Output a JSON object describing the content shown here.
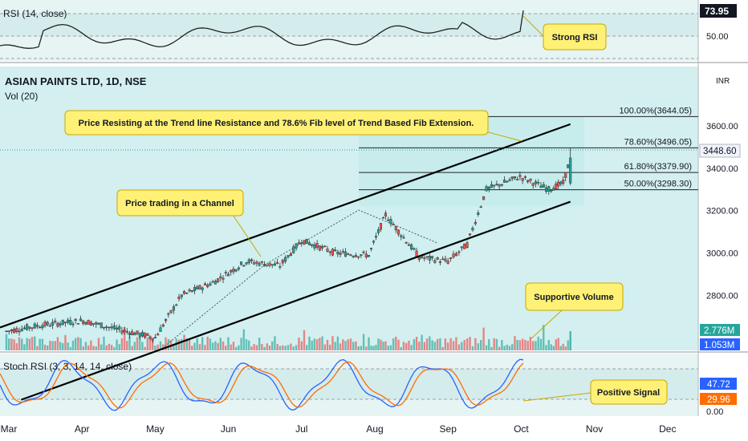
{
  "chart_data": {
    "type": "candlestick",
    "symbol_title": "ASIAN PAINTS LTD, 1D, NSE",
    "volume_label": "Vol (20)",
    "currency": "INR",
    "x_ticks": [
      "Mar",
      "Apr",
      "May",
      "Jun",
      "Jul",
      "Aug",
      "Sep",
      "Oct",
      "Nov",
      "Dec"
    ],
    "price_axis": {
      "ticks": [
        "3600.00",
        "3400.00",
        "3200.00",
        "3000.00",
        "2800.00"
      ],
      "range": [
        2540,
        3880
      ]
    },
    "last_price": "3448.60",
    "fib_levels": [
      {
        "label": "100.00%(3644.05)",
        "value": 3644.05
      },
      {
        "label": "78.60%(3496.05)",
        "value": 3496.05
      },
      {
        "label": "61.80%(3379.90)",
        "value": 3379.9
      },
      {
        "label": "50.00%(3298.30)",
        "value": 3298.3
      }
    ],
    "channel": {
      "upper": [
        {
          "date": "2022-02-28",
          "price": 2648
        },
        {
          "date": "2022-10-21",
          "price": 3608
        }
      ],
      "lower": [
        {
          "date": "2022-05-12",
          "price": 2580
        },
        {
          "date": "2022-10-21",
          "price": 3242
        }
      ]
    },
    "candles_ohlc": [
      [
        "2022-02-28",
        2600,
        2640,
        2590,
        2630
      ],
      [
        "2022-03-15",
        2640,
        2680,
        2620,
        2660
      ],
      [
        "2022-04-01",
        2650,
        2700,
        2620,
        2680
      ],
      [
        "2022-04-15",
        2680,
        2720,
        2620,
        2640
      ],
      [
        "2022-05-01",
        2620,
        2660,
        2580,
        2600
      ],
      [
        "2022-05-12",
        2600,
        2820,
        2580,
        2800
      ],
      [
        "2022-05-25",
        2800,
        2880,
        2780,
        2860
      ],
      [
        "2022-06-08",
        2880,
        3000,
        2860,
        2960
      ],
      [
        "2022-06-22",
        2960,
        3000,
        2920,
        2940
      ],
      [
        "2022-07-01",
        2950,
        3080,
        2940,
        3060
      ],
      [
        "2022-07-15",
        3040,
        3080,
        2980,
        3000
      ],
      [
        "2022-07-29",
        3000,
        3020,
        2960,
        2990
      ],
      [
        "2022-08-05",
        3000,
        3200,
        2990,
        3180
      ],
      [
        "2022-08-19",
        3160,
        3180,
        2960,
        2980
      ],
      [
        "2022-08-31",
        2980,
        3000,
        2940,
        2960
      ],
      [
        "2022-09-08",
        2960,
        3060,
        2950,
        3040
      ],
      [
        "2022-09-16",
        3040,
        3320,
        3030,
        3300
      ],
      [
        "2022-09-30",
        3300,
        3390,
        3280,
        3360
      ],
      [
        "2022-10-12",
        3340,
        3380,
        3260,
        3300
      ],
      [
        "2022-10-18",
        3300,
        3350,
        3280,
        3330
      ],
      [
        "2022-10-21",
        3330,
        3496,
        3320,
        3448.6
      ]
    ],
    "volume": {
      "axis_labels": [
        "2.776M",
        "1.053M"
      ]
    },
    "rsi": {
      "label": "RSI (14, close)",
      "value": "73.95",
      "tick": "50.00"
    },
    "stoch_rsi": {
      "label": "Stoch RSI (3, 3, 14, 14, close)",
      "k": "47.72",
      "d": "29.96",
      "tick": "0.00"
    },
    "annotations": [
      "Price Resisting at the Trend line Resistance and 78.6% Fib level of Trend Based Fib Extension.",
      "Price trading in a Channel",
      "Supportive Volume",
      "Strong RSI",
      "Positive Signal"
    ]
  },
  "colors": {
    "up": "#26a69a",
    "down": "#ef5350",
    "rsi_line": "#222222",
    "stoch_k": "#2962ff",
    "stoch_d": "#ff6d00",
    "callout": "#fff176",
    "panel_bg": "#d9f2f0",
    "channel_fill": "#cceff0"
  }
}
